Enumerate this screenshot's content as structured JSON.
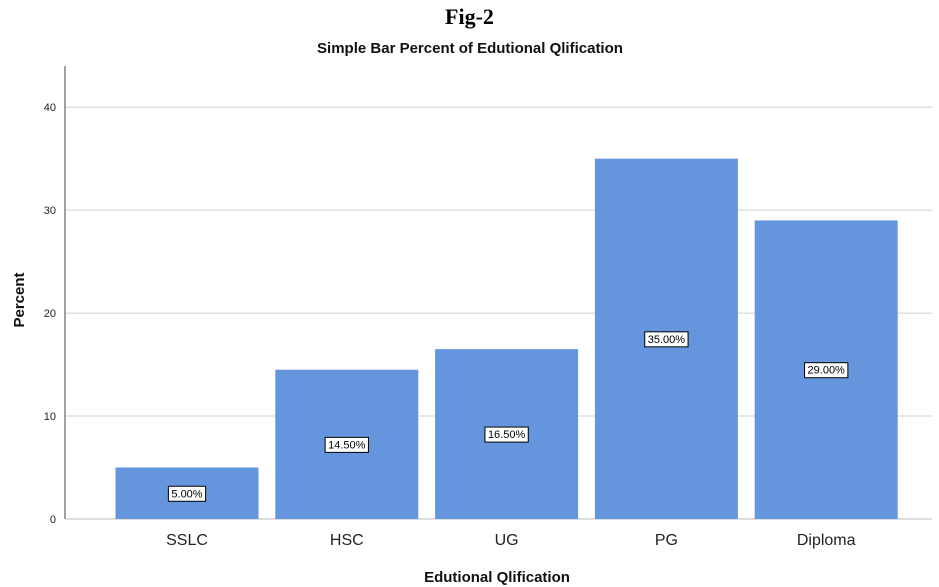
{
  "figure_label": "Fig-2",
  "chart_data": {
    "type": "bar",
    "title": "Simple Bar Percent of Edutional Qlification",
    "xlabel": "Edutional Qlification",
    "ylabel": "Percent",
    "categories": [
      "SSLC",
      "HSC",
      "UG",
      "PG",
      "Diploma"
    ],
    "values": [
      5.0,
      14.5,
      16.5,
      35.0,
      29.0
    ],
    "data_labels": [
      "5.00%",
      "14.50%",
      "16.50%",
      "35.00%",
      "29.00%"
    ],
    "yticks": [
      0,
      10,
      20,
      30,
      40
    ],
    "ylim": [
      0,
      44
    ],
    "grid": true,
    "bar_color": "#6495dd",
    "gridline_color": "#d0d0d0"
  }
}
